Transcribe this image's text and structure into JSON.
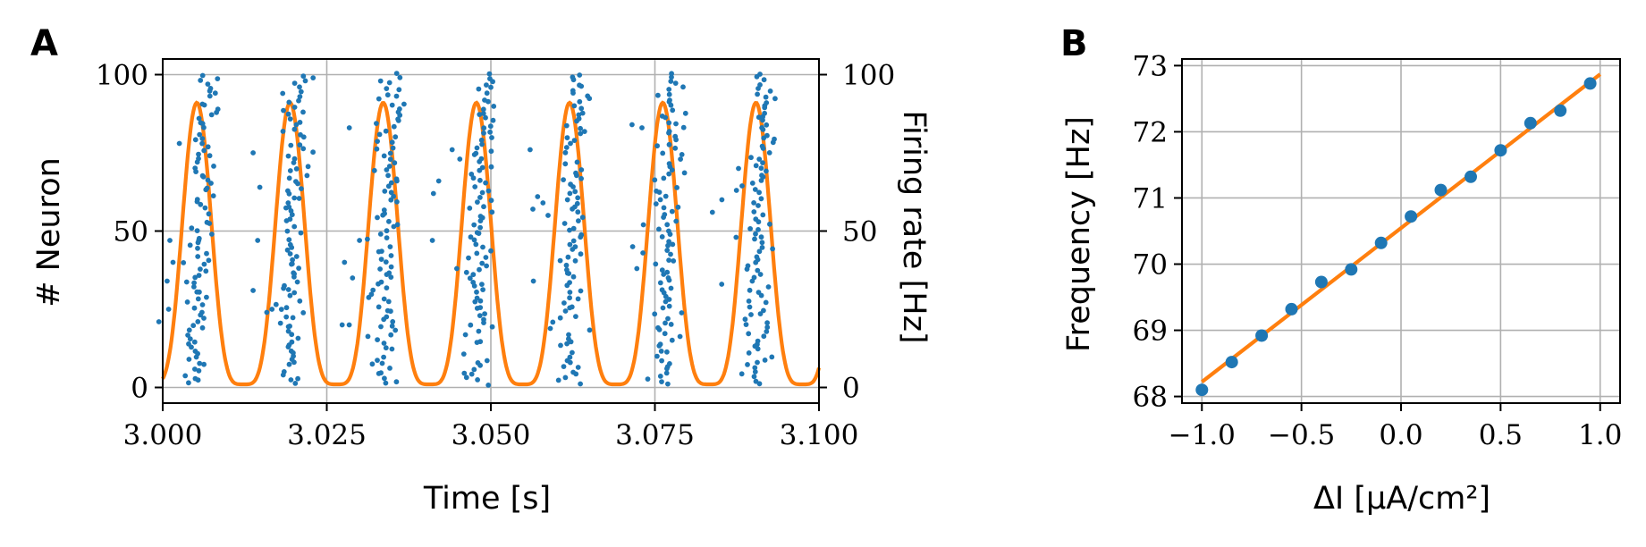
{
  "panels": {
    "a": {
      "label": "A"
    },
    "b": {
      "label": "B"
    }
  },
  "colors": {
    "scatter": "#1f77b4",
    "line": "#ff7f0e",
    "grid": "#b0b0b0",
    "axis": "#000000"
  },
  "chart_data": [
    {
      "panel": "A",
      "type": "scatter",
      "xlabel": "Time [s]",
      "ylabel": "# Neuron",
      "ylabel_right": "Firing rate [Hz]",
      "xlim": [
        3.0,
        3.1
      ],
      "ylim": [
        -5,
        105
      ],
      "ylim_right": [
        -5,
        105
      ],
      "xticks": [
        "3.000",
        "3.025",
        "3.050",
        "3.075",
        "3.100"
      ],
      "xtick_values": [
        3.0,
        3.025,
        3.05,
        3.075,
        3.1
      ],
      "yticks": [
        "0",
        "50",
        "100"
      ],
      "ytick_values": [
        0,
        50,
        100
      ],
      "yticks_right": [
        "0",
        "50",
        "100"
      ],
      "grid": true,
      "series": [
        {
          "kind": "spikes",
          "burst_centers": [
            3.0057,
            3.0199,
            3.0341,
            3.0483,
            3.0625,
            3.0767,
            3.0909
          ],
          "burst_width_s": 0.0033,
          "neurons": [
            0,
            100
          ]
        },
        {
          "kind": "firing_rate",
          "peak_times": [
            3.0052,
            3.0194,
            3.0336,
            3.0478,
            3.062,
            3.0762,
            3.0904
          ],
          "period_s": 0.0142,
          "min_hz": 1,
          "max_hz": 91
        }
      ]
    },
    {
      "panel": "B",
      "type": "scatter",
      "xlabel": "ΔI [μA/cm²]",
      "ylabel": "Frequency [Hz]",
      "xlim": [
        -1.1,
        1.1
      ],
      "ylim": [
        67.9,
        73.1
      ],
      "xticks": [
        "−1.0",
        "−0.5",
        "0.0",
        "0.5",
        "1.0"
      ],
      "xtick_values": [
        -1.0,
        -0.5,
        0.0,
        0.5,
        1.0
      ],
      "yticks": [
        "68",
        "69",
        "70",
        "71",
        "72",
        "73"
      ],
      "ytick_values": [
        68,
        69,
        70,
        71,
        72,
        73
      ],
      "grid": true,
      "series": [
        {
          "kind": "points",
          "x": [
            -1.0,
            -0.85,
            -0.7,
            -0.55,
            -0.4,
            -0.25,
            -0.1,
            0.05,
            0.2,
            0.35,
            0.5,
            0.65,
            0.8,
            0.95
          ],
          "y": [
            68.1,
            68.52,
            68.92,
            69.32,
            69.73,
            69.92,
            70.32,
            70.72,
            71.12,
            71.32,
            71.72,
            72.13,
            72.32,
            72.73
          ]
        },
        {
          "kind": "fit_line",
          "x": [
            -1.0,
            1.0
          ],
          "y": [
            68.22,
            72.87
          ]
        }
      ]
    }
  ]
}
